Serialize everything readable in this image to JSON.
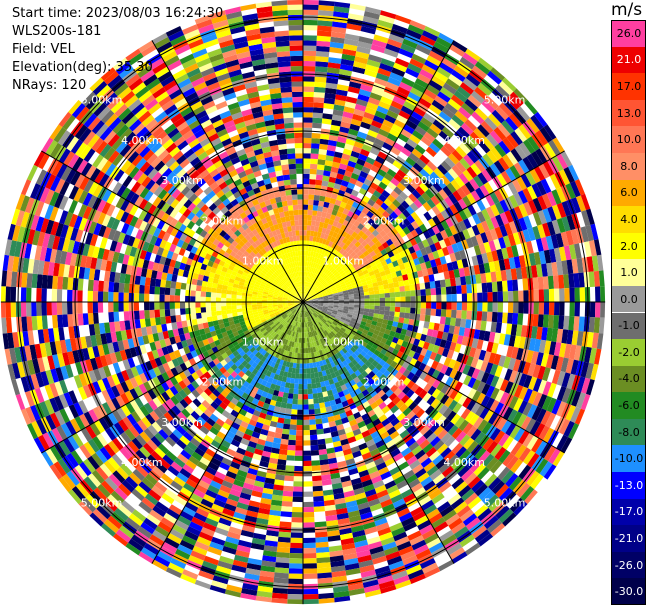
{
  "header": {
    "start_time": "Start time: 2023/08/03 16:24:30",
    "instrument": "WLS200s-181",
    "field": "Field: VEL",
    "elevation": "Elevation(deg): 35.30",
    "nrays": "NRays: 120"
  },
  "colorbar": {
    "unit": "m/s",
    "levels": [
      {
        "label": "26.0",
        "color": "#ff3fa0",
        "text": "#000000"
      },
      {
        "label": "21.0",
        "color": "#ee0000",
        "text": "#ffffff"
      },
      {
        "label": "17.0",
        "color": "#ff3300",
        "text": "#000000"
      },
      {
        "label": "13.0",
        "color": "#ff5533",
        "text": "#000000"
      },
      {
        "label": "10.0",
        "color": "#ff7755",
        "text": "#000000"
      },
      {
        "label": "8.0",
        "color": "#ff8f66",
        "text": "#000000"
      },
      {
        "label": "6.0",
        "color": "#ffaa00",
        "text": "#000000"
      },
      {
        "label": "4.0",
        "color": "#ffdd00",
        "text": "#000000"
      },
      {
        "label": "2.0",
        "color": "#ffff00",
        "text": "#000000"
      },
      {
        "label": "1.0",
        "color": "#ffff99",
        "text": "#000000"
      },
      {
        "label": "0.0",
        "color": "#9a9a9a",
        "text": "#000000"
      },
      {
        "label": "-1.0",
        "color": "#6e6e6e",
        "text": "#000000"
      },
      {
        "label": "-2.0",
        "color": "#9acd32",
        "text": "#000000"
      },
      {
        "label": "-4.0",
        "color": "#6b8e23",
        "text": "#000000"
      },
      {
        "label": "-6.0",
        "color": "#228b22",
        "text": "#000000"
      },
      {
        "label": "-8.0",
        "color": "#2e8b57",
        "text": "#000000"
      },
      {
        "label": "-10.0",
        "color": "#1e90ff",
        "text": "#000000"
      },
      {
        "label": "-13.0",
        "color": "#0000ff",
        "text": "#ffffff"
      },
      {
        "label": "-17.0",
        "color": "#0000aa",
        "text": "#ffffff"
      },
      {
        "label": "-21.0",
        "color": "#000088",
        "text": "#ffffff"
      },
      {
        "label": "-26.0",
        "color": "#000066",
        "text": "#ffffff"
      },
      {
        "label": "-30.0",
        "color": "#00004a",
        "text": "#ffffff"
      }
    ]
  },
  "chart_data": {
    "type": "heatmap",
    "projection": "polar PPI",
    "field": "VEL",
    "units": "m/s",
    "elevation_deg": 35.3,
    "n_rays": 120,
    "range_rings_km": [
      1.0,
      2.0,
      3.0,
      4.0,
      5.0
    ],
    "ring_labels": [
      "1.00km",
      "2.00km",
      "3.00km",
      "4.00km",
      "5.00km"
    ],
    "spoke_azimuths_deg": [
      0,
      30,
      60,
      90,
      120,
      150,
      180,
      210,
      240,
      270,
      300,
      330
    ],
    "max_range_km": 5.3,
    "radial_pattern_by_range_km": [
      {
        "from": 0.0,
        "to": 1.0,
        "north": "2.0",
        "south": "-2.0",
        "east": "-1.0",
        "west": "2.0"
      },
      {
        "from": 1.0,
        "to": 2.0,
        "north": "8.0",
        "south": "-10.0",
        "east": "-1.0",
        "west": "2.0"
      },
      {
        "from": 2.0,
        "to": 5.3,
        "pattern": "noise"
      }
    ]
  }
}
